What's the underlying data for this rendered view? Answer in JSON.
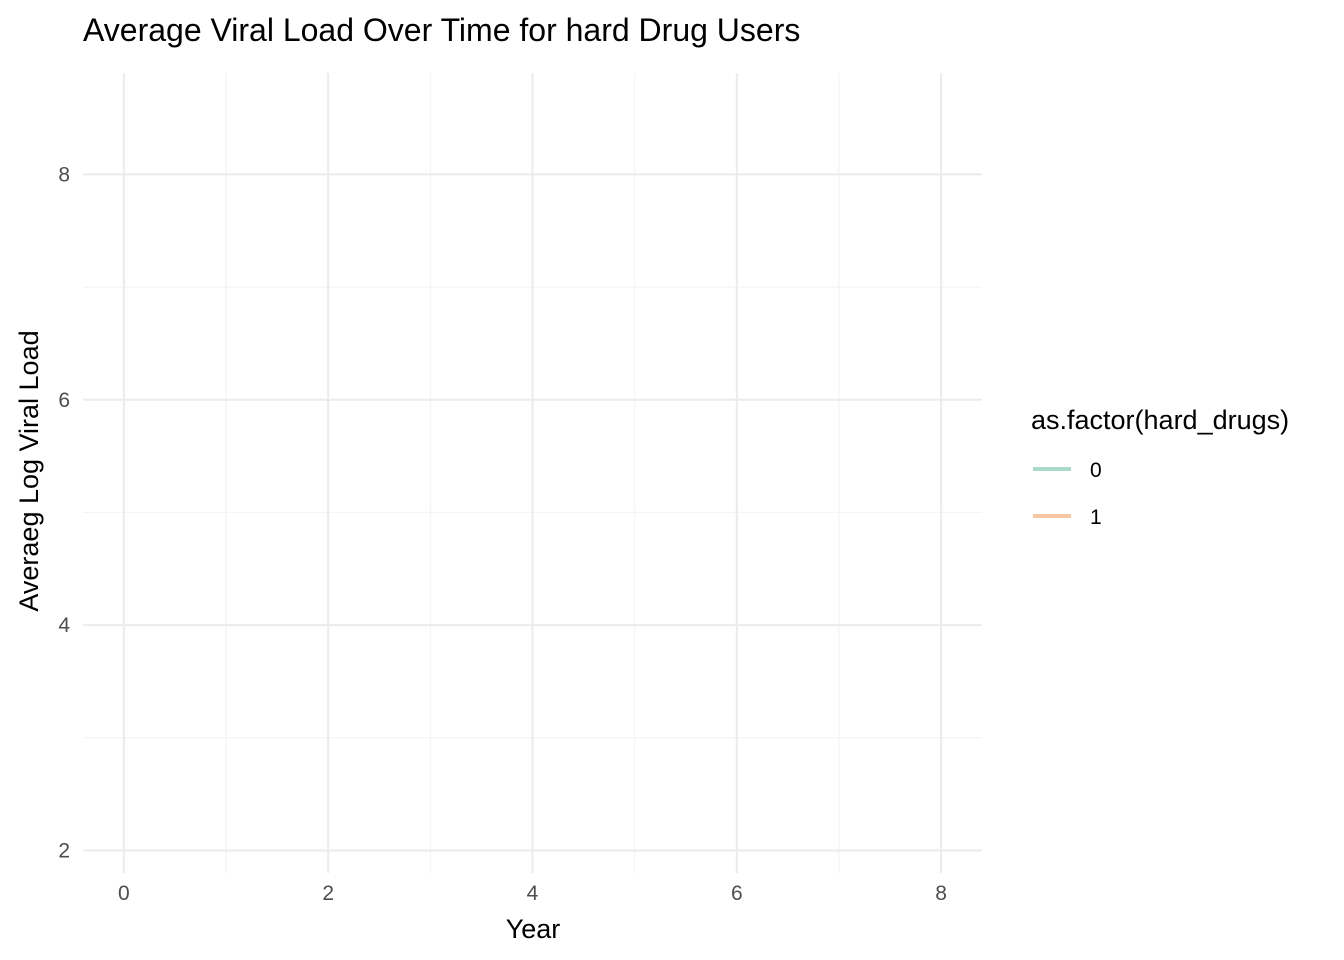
{
  "chart_data": {
    "type": "line",
    "title": "Average Viral Load Over Time for hard Drug Users",
    "xlabel": "Year",
    "ylabel": "Averaeg Log Viral Load",
    "xlim": [
      -0.4,
      8.4
    ],
    "ylim": [
      1.8,
      8.9
    ],
    "x_ticks": [
      "0",
      "2",
      "4",
      "6",
      "8"
    ],
    "y_ticks": [
      "2",
      "4",
      "6",
      "8"
    ],
    "grid": true,
    "legend": {
      "title": "as.factor(hard_drugs)",
      "placement": "right",
      "entries": [
        {
          "label": "0",
          "color": "#a8dcc9"
        },
        {
          "label": "1",
          "color": "#f7c6a5"
        }
      ]
    },
    "series": []
  }
}
